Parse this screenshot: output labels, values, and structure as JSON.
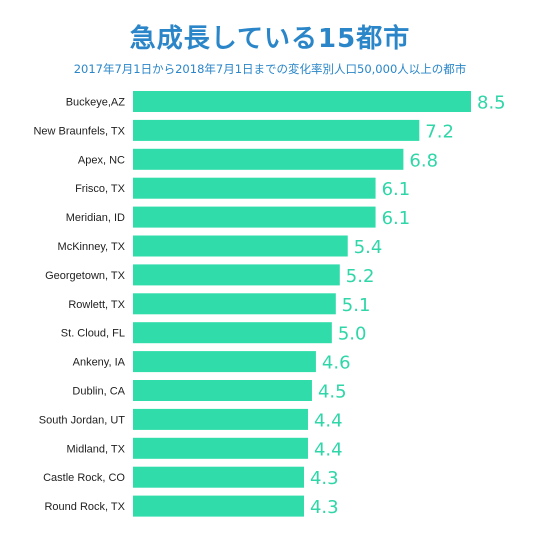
{
  "header": {
    "title": "急成長している15都市",
    "subtitle": "2017年7月1日から2018年7月1日までの変化率別人口50,000人以上の都市"
  },
  "colors": {
    "bar": "#2fdcaa",
    "accent": "#2a86c8",
    "value_text": "#2fd6a8"
  },
  "chart_data": {
    "type": "bar",
    "orientation": "horizontal",
    "title": "急成長している15都市",
    "subtitle": "2017年7月1日から2018年7月1日までの変化率別人口50,000人以上の都市",
    "categories": [
      "Buckeye,AZ",
      "New Braunfels, TX",
      "Apex, NC",
      "Frisco, TX",
      "Meridian, ID",
      "McKinney, TX",
      "Georgetown, TX",
      "Rowlett, TX",
      "St. Cloud, FL",
      "Ankeny, IA",
      "Dublin, CA",
      "South Jordan, UT",
      "Midland, TX",
      "Castle Rock, CO",
      "Round Rock, TX"
    ],
    "values": [
      8.5,
      7.2,
      6.8,
      6.1,
      6.1,
      5.4,
      5.2,
      5.1,
      5.0,
      4.6,
      4.5,
      4.4,
      4.4,
      4.3,
      4.3
    ],
    "value_labels": [
      "8.5",
      "7.2",
      "6.8",
      "6.1",
      "6.1",
      "5.4",
      "5.2",
      "5.1",
      "5.0",
      "4.6",
      "4.5",
      "4.4",
      "4.4",
      "4.3",
      "4.3"
    ],
    "xlim": [
      0,
      8.5
    ],
    "grid": false,
    "legend": "none"
  }
}
